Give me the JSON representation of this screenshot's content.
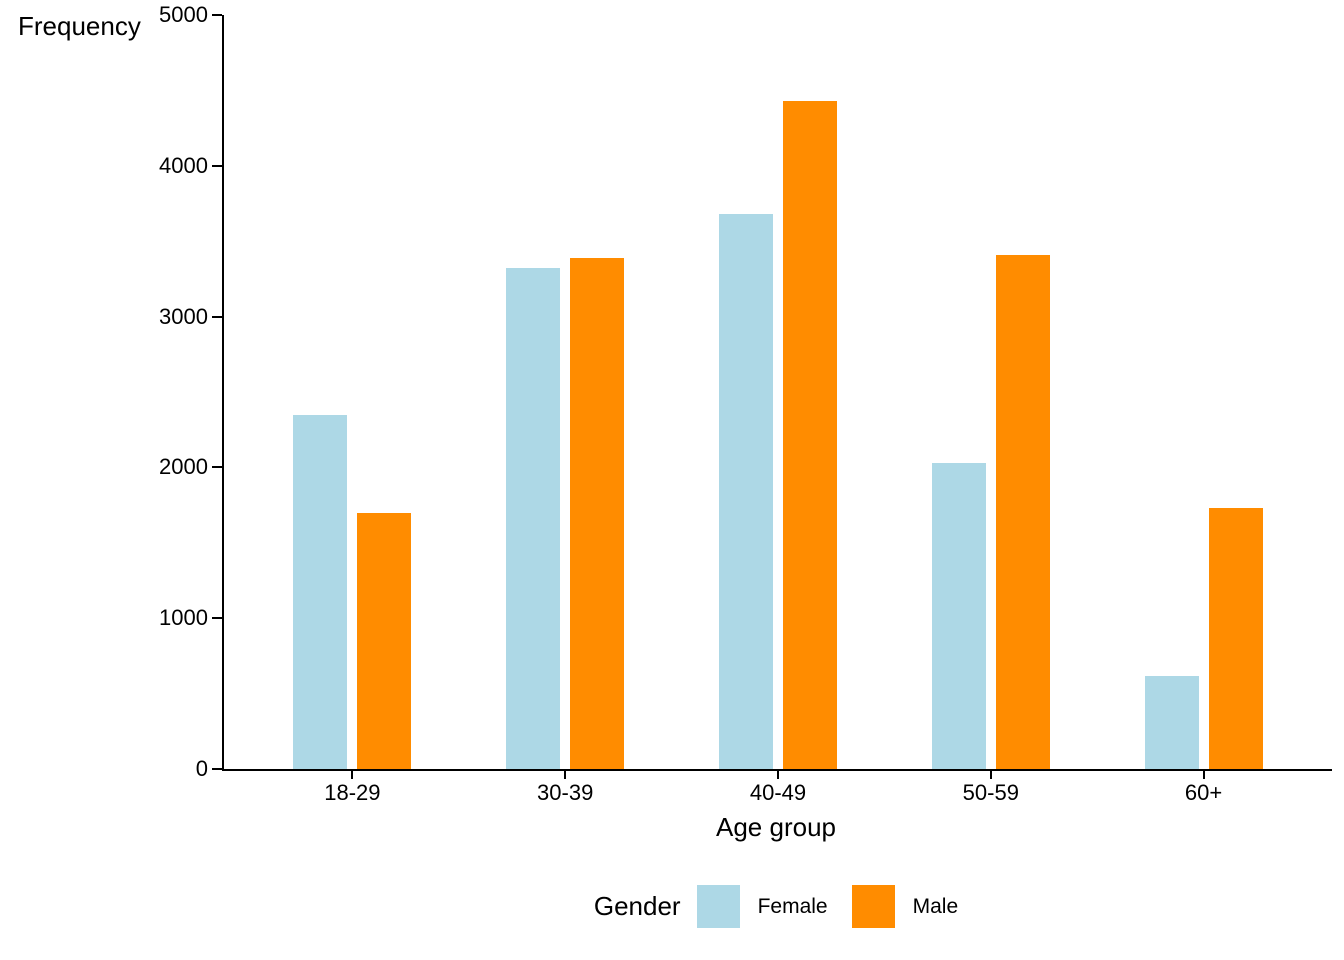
{
  "chart_data": {
    "type": "bar",
    "title": "",
    "categories": [
      "18-29",
      "30-39",
      "40-49",
      "50-59",
      "60+"
    ],
    "series": [
      {
        "name": "Female",
        "color": "#ADD8E6",
        "values": [
          2350,
          3320,
          3680,
          2030,
          620
        ]
      },
      {
        "name": "Male",
        "color": "#FF8C00",
        "values": [
          1700,
          3390,
          4430,
          3410,
          1730
        ]
      }
    ],
    "xlabel": "Age group",
    "ylabel": "Frequency",
    "ylim": [
      0,
      5000
    ],
    "yticks": [
      0,
      1000,
      2000,
      3000,
      4000,
      5000
    ],
    "grid": false,
    "axis_color": "#000000",
    "background": "#FFFFFF",
    "legend": {
      "title": "Gender",
      "position": "bottom",
      "entries": [
        "Female",
        "Male"
      ]
    }
  }
}
